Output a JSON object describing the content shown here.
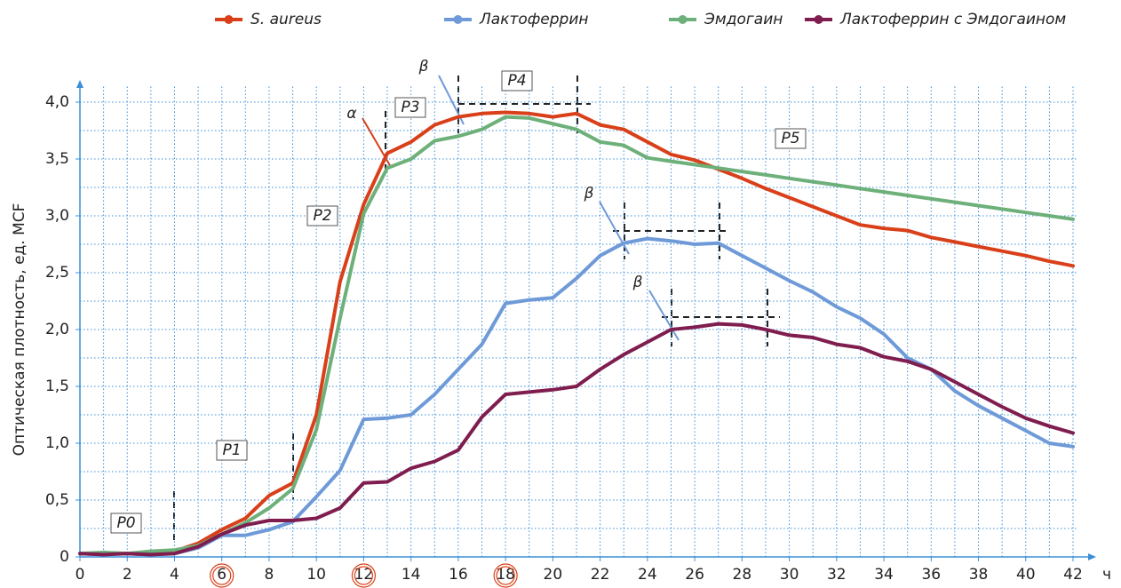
{
  "chart_data": {
    "type": "line",
    "x_label": "ч",
    "y_label": "Оптическая плотность, ед. MCF",
    "x": [
      0,
      1,
      2,
      3,
      4,
      5,
      6,
      7,
      8,
      9,
      10,
      11,
      12,
      13,
      14,
      15,
      16,
      17,
      18,
      19,
      20,
      21,
      22,
      23,
      24,
      25,
      26,
      27,
      28,
      29,
      30,
      31,
      32,
      33,
      34,
      35,
      36,
      37,
      38,
      39,
      40,
      41,
      42
    ],
    "xlim": [
      0,
      42
    ],
    "xticks": [
      0,
      2,
      4,
      6,
      8,
      10,
      12,
      14,
      16,
      18,
      20,
      22,
      24,
      26,
      28,
      30,
      32,
      34,
      36,
      38,
      40,
      42
    ],
    "circled_xticks": [
      6,
      12,
      18
    ],
    "ylim": [
      0,
      4
    ],
    "yticks": [
      0,
      {
        "value": 0.5,
        "label": "0,5"
      },
      {
        "value": 1,
        "label": "1,0"
      },
      {
        "value": 1.5,
        "label": "1,5"
      },
      {
        "value": 2,
        "label": "2,0"
      },
      {
        "value": 2.5,
        "label": "2,5"
      },
      {
        "value": 3,
        "label": "3,0"
      },
      {
        "value": 3.5,
        "label": "3,5"
      },
      {
        "value": 4,
        "label": "4,0"
      }
    ],
    "grid": true,
    "legend": "top",
    "series": [
      {
        "name": "S. aureus",
        "color": "#d9401a",
        "values": [
          0.03,
          0.03,
          0.03,
          0.02,
          0.05,
          0.12,
          0.24,
          0.34,
          0.54,
          0.65,
          1.25,
          2.42,
          3.1,
          3.55,
          3.65,
          3.8,
          3.87,
          3.9,
          3.91,
          3.9,
          3.87,
          3.9,
          3.8,
          3.76,
          3.65,
          3.54,
          3.49,
          3.41,
          3.33,
          3.24,
          3.16,
          3.08,
          3.0,
          2.92,
          2.89,
          2.87,
          2.81,
          2.77,
          2.73,
          2.69,
          2.65,
          2.6,
          2.56
        ]
      },
      {
        "name": "Лактоферрин",
        "color": "#6f9ad8",
        "values": [
          0.03,
          0.02,
          0.03,
          0.02,
          0.03,
          0.08,
          0.19,
          0.19,
          0.24,
          0.31,
          0.53,
          0.76,
          1.21,
          1.22,
          1.25,
          1.43,
          1.65,
          1.87,
          2.23,
          2.26,
          2.28,
          2.45,
          2.65,
          2.76,
          2.8,
          2.78,
          2.75,
          2.76,
          2.65,
          2.54,
          2.43,
          2.33,
          2.2,
          2.1,
          1.96,
          1.75,
          1.65,
          1.46,
          1.33,
          1.22,
          1.11,
          1.0,
          0.97
        ]
      },
      {
        "name": "Эмдогаин",
        "color": "#6db07a",
        "values": [
          0.03,
          0.04,
          0.03,
          0.05,
          0.06,
          0.1,
          0.2,
          0.3,
          0.43,
          0.6,
          1.12,
          2.1,
          3.02,
          3.42,
          3.5,
          3.66,
          3.7,
          3.76,
          3.87,
          3.86,
          3.81,
          3.76,
          3.65,
          3.62,
          3.51,
          3.48,
          3.45,
          3.42,
          3.39,
          3.36,
          3.33,
          3.3,
          3.27,
          3.24,
          3.21,
          3.18,
          3.15,
          3.12,
          3.09,
          3.06,
          3.03,
          3.0,
          2.97
        ]
      },
      {
        "name": "Лактоферрин с Эмдогаином",
        "color": "#7f1d4f",
        "values": [
          0.03,
          0.02,
          0.03,
          0.02,
          0.03,
          0.09,
          0.2,
          0.28,
          0.32,
          0.32,
          0.34,
          0.43,
          0.65,
          0.66,
          0.78,
          0.84,
          0.94,
          1.23,
          1.43,
          1.45,
          1.47,
          1.5,
          1.65,
          1.78,
          1.89,
          2.0,
          2.02,
          2.05,
          2.04,
          2.0,
          1.95,
          1.93,
          1.87,
          1.84,
          1.76,
          1.72,
          1.65,
          1.54,
          1.43,
          1.32,
          1.22,
          1.15,
          1.09
        ]
      }
    ],
    "annotations": [
      "P0",
      "P1",
      "P2",
      "P3",
      "P4",
      "P5",
      "α",
      "β",
      "β",
      "β"
    ]
  }
}
